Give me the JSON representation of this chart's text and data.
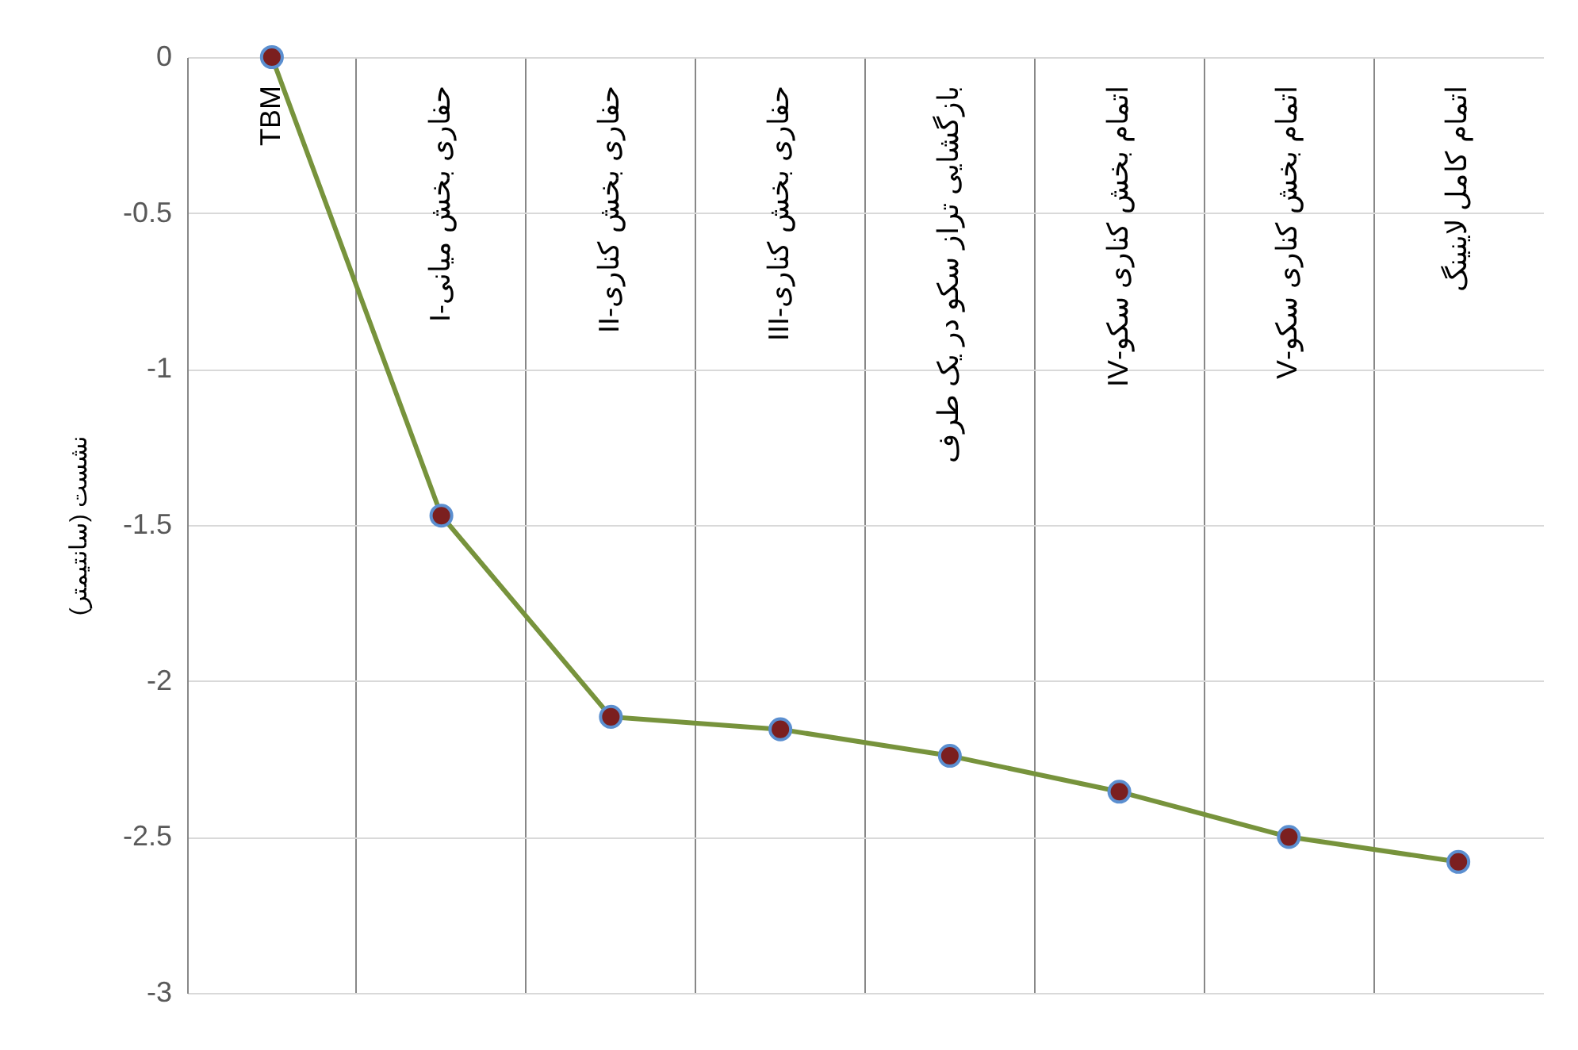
{
  "chart_data": {
    "type": "line",
    "ylabel": "نشست (سانتیمتر)",
    "categories": [
      "TBM",
      "حفاری بخش میانی-I",
      "حفاری بخش کناری-II",
      "حفاری بخش کناری-III",
      "بازگشایی تراز سکو در یک طرف",
      "اتمام بخش کناری سکو-IV",
      "اتمام بخش کناری سکو-V",
      "اتمام کامل لاینینگ"
    ],
    "series": [
      {
        "color": "#77933c",
        "values": [
          0,
          -1.47,
          -2.115,
          -2.155,
          -2.24,
          -2.355,
          -2.5,
          -2.58
        ]
      }
    ],
    "ylim": [
      -3,
      0
    ],
    "yticks": [
      -3,
      -2.5,
      -2,
      -1.5,
      -1,
      -0.5,
      0
    ],
    "grid": true,
    "marker": "circle",
    "line_style": "solid"
  }
}
